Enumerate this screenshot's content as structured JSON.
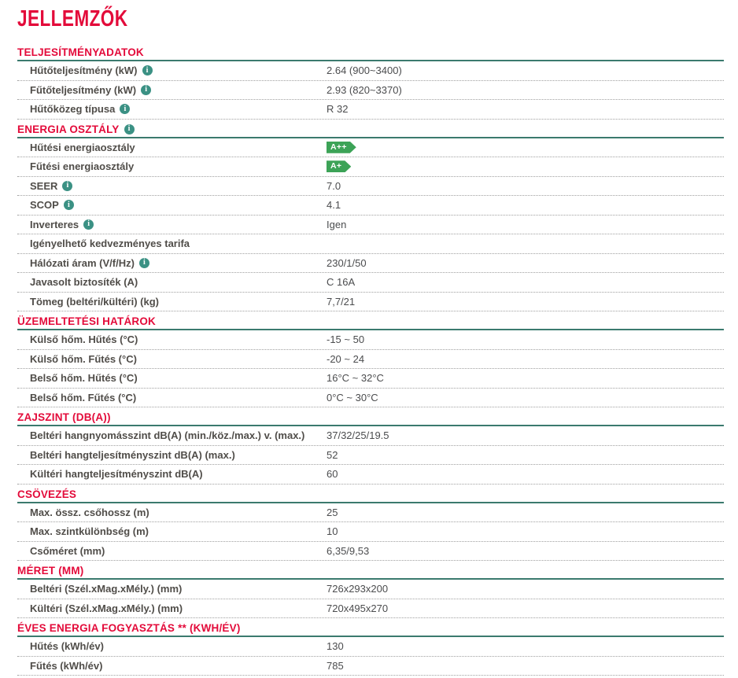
{
  "page": {
    "title": "JELLEMZŐK"
  },
  "colors": {
    "accent_red": "#e30b3a",
    "teal_line": "#3b7a6e",
    "icon_teal": "#3b9184",
    "badge_green": "#3ca357"
  },
  "info_icon_glyph": "i",
  "sections": [
    {
      "title": "TELJESÍTMÉNYADATOK",
      "has_info": false,
      "rows": [
        {
          "label": "Hűtőteljesítmény (kW)",
          "info": true,
          "value": "2.64 (900~3400)"
        },
        {
          "label": "Fűtőteljesítmény (kW)",
          "info": true,
          "value": "2.93 (820~3370)"
        },
        {
          "label": "Hűtőközeg típusa",
          "info": true,
          "value": "R 32"
        }
      ]
    },
    {
      "title": "ENERGIA OSZTÁLY",
      "has_info": true,
      "rows": [
        {
          "label": "Hűtési energiaosztály",
          "info": false,
          "badge": "A++"
        },
        {
          "label": "Fűtési energiaosztály",
          "info": false,
          "badge": "A+"
        },
        {
          "label": "SEER",
          "info": true,
          "value": "7.0"
        },
        {
          "label": "SCOP",
          "info": true,
          "value": "4.1"
        },
        {
          "label": "Inverteres",
          "info": true,
          "value": "Igen"
        },
        {
          "label": "Igényelhető kedvezményes tarifa",
          "info": false,
          "value": ""
        },
        {
          "label": "Hálózati áram (V/f/Hz)",
          "info": true,
          "value": "230/1/50"
        },
        {
          "label": "Javasolt biztosíték (A)",
          "info": false,
          "value": "C 16A"
        },
        {
          "label": "Tömeg (beltéri/kültéri) (kg)",
          "info": false,
          "value": "7,7/21"
        }
      ]
    },
    {
      "title": "ÜZEMELTETÉSI HATÁROK",
      "has_info": false,
      "rows": [
        {
          "label": "Külső hőm. Hűtés (°C)",
          "info": false,
          "value": "-15 ~ 50"
        },
        {
          "label": "Külső hőm. Fűtés (°C)",
          "info": false,
          "value": "-20 ~ 24"
        },
        {
          "label": "Belső hőm. Hűtés (°C)",
          "info": false,
          "value": "16°C ~ 32°C"
        },
        {
          "label": "Belső hőm. Fűtés (°C)",
          "info": false,
          "value": "0°C ~ 30°C"
        }
      ]
    },
    {
      "title": "ZAJSZINT (DB(A))",
      "has_info": false,
      "rows": [
        {
          "label": "Beltéri hangnyomásszint dB(A) (min./köz./max.) v. (max.)",
          "info": false,
          "value": "37/32/25/19.5"
        },
        {
          "label": "Beltéri hangteljesítményszint dB(A) (max.)",
          "info": false,
          "value": "52"
        },
        {
          "label": "Kültéri hangteljesítményszint dB(A)",
          "info": false,
          "value": "60"
        }
      ]
    },
    {
      "title": "CSÖVEZÉS",
      "has_info": false,
      "rows": [
        {
          "label": "Max. össz. csőhossz (m)",
          "info": false,
          "value": "25"
        },
        {
          "label": "Max. szintkülönbség (m)",
          "info": false,
          "value": "10"
        },
        {
          "label": "Csőméret (mm)",
          "info": false,
          "value": "6,35/9,53"
        }
      ]
    },
    {
      "title": "MÉRET (MM)",
      "has_info": false,
      "rows": [
        {
          "label": "Beltéri (Szél.xMag.xMély.) (mm)",
          "info": false,
          "value": "726x293x200"
        },
        {
          "label": "Kültéri (Szél.xMag.xMély.) (mm)",
          "info": false,
          "value": "720x495x270"
        }
      ]
    },
    {
      "title": "ÉVES ENERGIA FOGYASZTÁS ** (KWH/ÉV)",
      "has_info": false,
      "rows": [
        {
          "label": "Hűtés (kWh/év)",
          "info": false,
          "value": "130"
        },
        {
          "label": "Fűtés (kWh/év)",
          "info": false,
          "value": "785"
        }
      ]
    }
  ]
}
